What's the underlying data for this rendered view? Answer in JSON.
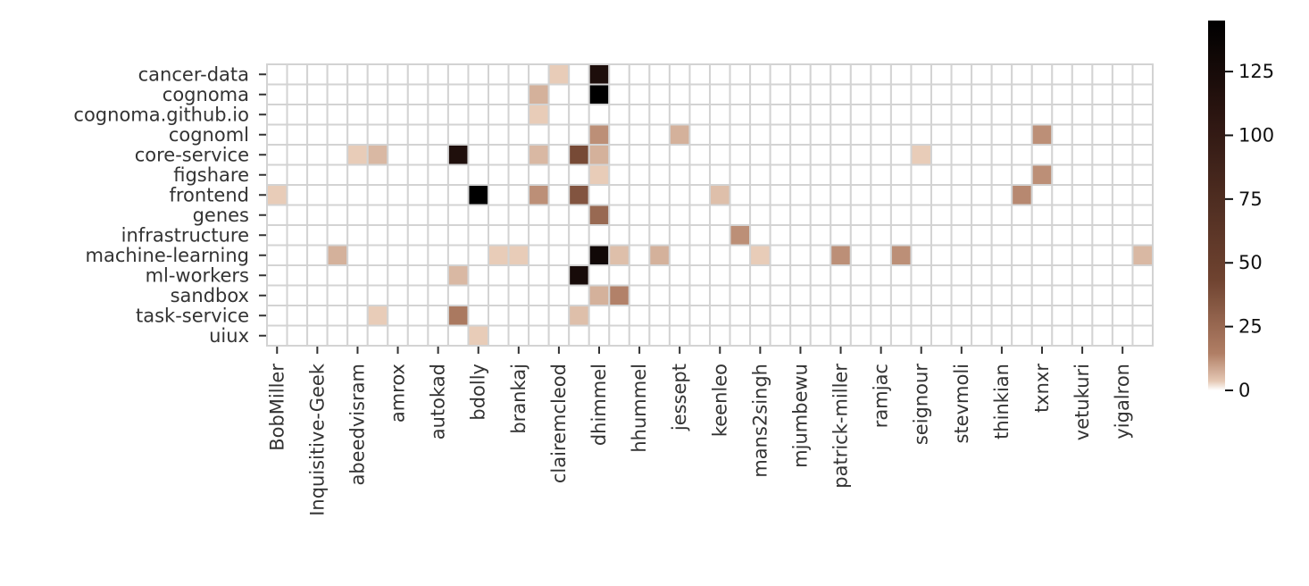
{
  "chart_data": {
    "type": "heatmap",
    "title": "",
    "xlabel": "",
    "ylabel": "",
    "rows": [
      "cancer-data",
      "cognoma",
      "cognoma.github.io",
      "cognoml",
      "core-service",
      "figshare",
      "frontend",
      "genes",
      "infrastructure",
      "machine-learning",
      "ml-workers",
      "sandbox",
      "task-service",
      "uiux"
    ],
    "columns": [
      "BobMiller",
      "",
      "Inquisitive-Geek",
      "",
      "abeedvisram",
      "",
      "amrox",
      "",
      "autokad",
      "",
      "bdolly",
      "",
      "brankaj",
      "",
      "clairemcleod",
      "",
      "dhimmel",
      "",
      "hhummel",
      "",
      "jessept",
      "",
      "keenleo",
      "",
      "mans2singh",
      "",
      "mjumbewu",
      "",
      "patrick-miller",
      "",
      "ramjac",
      "",
      "seignour",
      "",
      "stevmoli",
      "",
      "thinkian",
      "",
      "txnxr",
      "",
      "vetukuri",
      "",
      "yigalron",
      ""
    ],
    "x_tick_labels": [
      "BobMiller",
      "Inquisitive-Geek",
      "abeedvisram",
      "amrox",
      "autokad",
      "bdolly",
      "brankaj",
      "clairemcleod",
      "dhimmel",
      "hhummel",
      "jessept",
      "keenleo",
      "mans2singh",
      "mjumbewu",
      "patrick-miller",
      "ramjac",
      "seignour",
      "stevmoli",
      "thinkian",
      "txnxr",
      "vetukuri",
      "yigalron"
    ],
    "cells": [
      {
        "row": 0,
        "col": 14,
        "value": 3
      },
      {
        "row": 0,
        "col": 16,
        "value": 120
      },
      {
        "row": 1,
        "col": 13,
        "value": 7
      },
      {
        "row": 1,
        "col": 16,
        "value": 145
      },
      {
        "row": 2,
        "col": 13,
        "value": 3
      },
      {
        "row": 3,
        "col": 16,
        "value": 12
      },
      {
        "row": 3,
        "col": 20,
        "value": 7
      },
      {
        "row": 3,
        "col": 38,
        "value": 12
      },
      {
        "row": 4,
        "col": 4,
        "value": 3
      },
      {
        "row": 4,
        "col": 5,
        "value": 6
      },
      {
        "row": 4,
        "col": 9,
        "value": 118
      },
      {
        "row": 4,
        "col": 13,
        "value": 6
      },
      {
        "row": 4,
        "col": 15,
        "value": 40
      },
      {
        "row": 4,
        "col": 16,
        "value": 7
      },
      {
        "row": 4,
        "col": 32,
        "value": 3
      },
      {
        "row": 5,
        "col": 16,
        "value": 3
      },
      {
        "row": 5,
        "col": 38,
        "value": 12
      },
      {
        "row": 6,
        "col": 0,
        "value": 3
      },
      {
        "row": 6,
        "col": 10,
        "value": 145
      },
      {
        "row": 6,
        "col": 13,
        "value": 12
      },
      {
        "row": 6,
        "col": 15,
        "value": 35
      },
      {
        "row": 6,
        "col": 22,
        "value": 5
      },
      {
        "row": 6,
        "col": 37,
        "value": 13
      },
      {
        "row": 7,
        "col": 16,
        "value": 25
      },
      {
        "row": 8,
        "col": 23,
        "value": 12
      },
      {
        "row": 9,
        "col": 3,
        "value": 7
      },
      {
        "row": 9,
        "col": 11,
        "value": 3
      },
      {
        "row": 9,
        "col": 12,
        "value": 3
      },
      {
        "row": 9,
        "col": 16,
        "value": 130
      },
      {
        "row": 9,
        "col": 17,
        "value": 5
      },
      {
        "row": 9,
        "col": 19,
        "value": 7
      },
      {
        "row": 9,
        "col": 24,
        "value": 3
      },
      {
        "row": 9,
        "col": 28,
        "value": 12
      },
      {
        "row": 9,
        "col": 31,
        "value": 12
      },
      {
        "row": 9,
        "col": 43,
        "value": 6
      },
      {
        "row": 10,
        "col": 9,
        "value": 6
      },
      {
        "row": 10,
        "col": 15,
        "value": 125
      },
      {
        "row": 11,
        "col": 16,
        "value": 7
      },
      {
        "row": 11,
        "col": 17,
        "value": 14
      },
      {
        "row": 12,
        "col": 5,
        "value": 3
      },
      {
        "row": 12,
        "col": 9,
        "value": 17
      },
      {
        "row": 12,
        "col": 15,
        "value": 5
      },
      {
        "row": 13,
        "col": 10,
        "value": 3
      }
    ],
    "colorbar": {
      "min": 0,
      "max": 145,
      "ticks": [
        0,
        25,
        50,
        75,
        100,
        125
      ]
    },
    "colors": {
      "low": "#ffffff",
      "mid_light": "#e8cdb9",
      "mid": "#b07e65",
      "mid_dark": "#6f4330",
      "dark": "#2a1410",
      "max": "#000000",
      "grid": "#d3d3d3"
    },
    "grid": true
  }
}
